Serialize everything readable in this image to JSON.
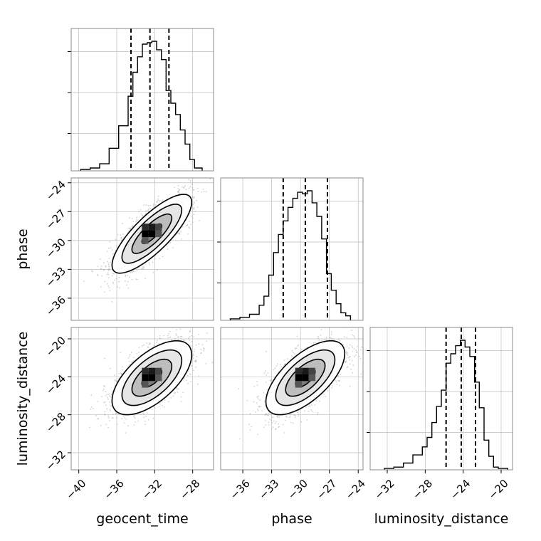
{
  "chart_data": {
    "type": "corner",
    "parameters": [
      "geocent_time",
      "phase",
      "luminosity_distance"
    ],
    "axis_labels": {
      "x": [
        "geocent_time",
        "phase",
        "luminosity_distance"
      ],
      "y": [
        "",
        "phase",
        "luminosity_distance"
      ]
    },
    "ranges": {
      "geocent_time": [
        -40.8,
        -25.8
      ],
      "phase": [
        -38.3,
        -23.5
      ],
      "luminosity_distance": [
        -33.8,
        -18.8
      ]
    },
    "ticks": {
      "geocent_time": [
        -40,
        -36,
        -32,
        -28
      ],
      "phase": [
        -36,
        -33,
        -30,
        -27,
        -24
      ],
      "luminosity_distance": [
        -32,
        -28,
        -24,
        -20
      ]
    },
    "tick_labels": {
      "geocent_time": [
        "−40",
        "−36",
        "−32",
        "−28"
      ],
      "phase": [
        "−36",
        "−33",
        "−30",
        "−27",
        "−24"
      ],
      "luminosity_distance": [
        "−32",
        "−28",
        "−24",
        "−20"
      ]
    },
    "quantiles": {
      "geocent_time": [
        -34.5,
        -32.5,
        -30.5
      ],
      "phase": [
        -31.8,
        -29.5,
        -27.2
      ],
      "luminosity_distance": [
        -25.8,
        -24.2,
        -22.7
      ]
    },
    "histograms": {
      "geocent_time": {
        "edges": [
          -39.8,
          -38.8,
          -37.8,
          -36.8,
          -35.8,
          -34.8,
          -34.3,
          -33.8,
          -33.3,
          -32.8,
          -32.3,
          -31.8,
          -31.3,
          -30.8,
          -30.3,
          -29.8,
          -29.3,
          -28.8,
          -28.3,
          -27.8,
          -27.0
        ],
        "counts": [
          0.01,
          0.02,
          0.05,
          0.16,
          0.32,
          0.53,
          0.7,
          0.81,
          0.9,
          0.91,
          0.92,
          0.86,
          0.79,
          0.57,
          0.48,
          0.4,
          0.29,
          0.19,
          0.08,
          0.02
        ]
      },
      "phase": {
        "edges": [
          -37.3,
          -36.3,
          -35.3,
          -34.3,
          -33.8,
          -33.3,
          -32.8,
          -32.3,
          -31.8,
          -31.3,
          -30.8,
          -30.3,
          -29.8,
          -29.3,
          -28.8,
          -28.3,
          -27.8,
          -27.3,
          -26.8,
          -26.3,
          -25.8,
          -25.3,
          -24.8
        ],
        "counts": [
          0.01,
          0.02,
          0.04,
          0.1,
          0.16,
          0.3,
          0.45,
          0.57,
          0.66,
          0.75,
          0.81,
          0.85,
          0.84,
          0.86,
          0.78,
          0.69,
          0.54,
          0.31,
          0.2,
          0.11,
          0.05,
          0.03
        ]
      },
      "luminosity_distance": {
        "edges": [
          -32.3,
          -31.3,
          -30.3,
          -29.3,
          -28.3,
          -27.8,
          -27.3,
          -26.8,
          -26.3,
          -25.8,
          -25.3,
          -24.8,
          -24.3,
          -23.8,
          -23.3,
          -22.8,
          -22.3,
          -21.8,
          -21.3,
          -20.8,
          -20.3,
          -19.3
        ],
        "counts": [
          0.01,
          0.02,
          0.05,
          0.11,
          0.17,
          0.24,
          0.35,
          0.47,
          0.59,
          0.79,
          0.86,
          0.92,
          0.96,
          0.91,
          0.84,
          0.65,
          0.46,
          0.22,
          0.1,
          0.02,
          0.01
        ]
      }
    },
    "scatter_panels": [
      {
        "x": "geocent_time",
        "y": "phase",
        "center": [
          -32.3,
          -29.3
        ],
        "sd": [
          2.1,
          2.05
        ],
        "corr": 0.8
      },
      {
        "x": "geocent_time",
        "y": "luminosity_distance",
        "center": [
          -32.3,
          -24.1
        ],
        "sd": [
          2.1,
          1.95
        ],
        "corr": 0.62
      },
      {
        "x": "phase",
        "y": "luminosity_distance",
        "center": [
          -29.5,
          -24.1
        ],
        "sd": [
          2.05,
          1.95
        ],
        "corr": 0.65
      }
    ],
    "contour_sigmas": [
      0.5,
      1.0,
      1.5,
      2.0
    ],
    "colors": {
      "line": "#000000",
      "points": "#9a9a9a",
      "grid": "#bdbdbd",
      "frame": "#888888"
    }
  }
}
